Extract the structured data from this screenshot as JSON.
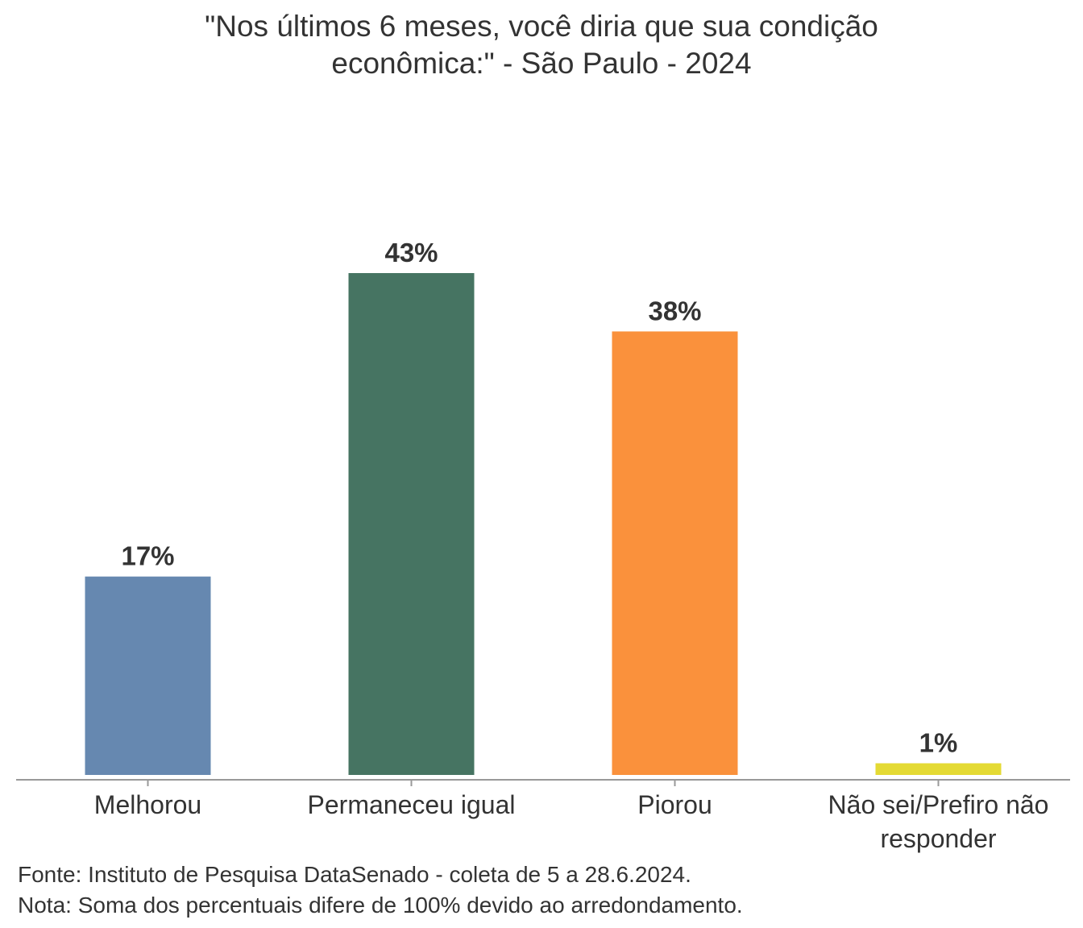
{
  "chart_data": {
    "type": "bar",
    "title_lines": [
      "\"Nos últimos 6 meses, você diria que sua condição",
      "econômica:\" - São Paulo - 2024"
    ],
    "categories": [
      [
        "Melhorou"
      ],
      [
        "Permaneceu igual"
      ],
      [
        "Piorou"
      ],
      [
        "Não sei/Prefiro não",
        "responder"
      ]
    ],
    "values": [
      17,
      43,
      38,
      1
    ],
    "value_labels": [
      "17%",
      "43%",
      "38%",
      "1%"
    ],
    "unit": "%",
    "colors": [
      "#6688B0",
      "#467462",
      "#FA913C",
      "#E4DA34"
    ],
    "ylim": [
      0,
      43
    ],
    "grid": false,
    "legend": "none"
  },
  "footer": {
    "source": "Fonte: Instituto de Pesquisa DataSenado - coleta de 5 a 28.6.2024.",
    "note": "Nota: Soma dos percentuais difere de 100% devido ao arredondamento."
  }
}
